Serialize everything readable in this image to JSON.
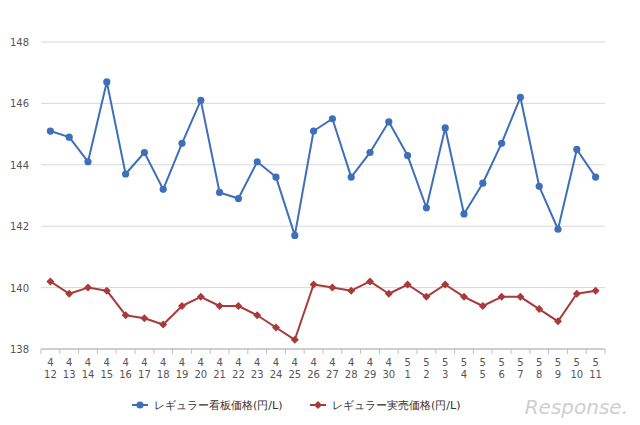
{
  "chart_data": {
    "type": "line",
    "categories": [
      "4\n12",
      "4\n13",
      "4\n14",
      "4\n15",
      "4\n16",
      "4\n17",
      "4\n18",
      "4\n19",
      "4\n20",
      "4\n21",
      "4\n22",
      "4\n23",
      "4\n24",
      "4\n25",
      "4\n26",
      "4\n27",
      "4\n28",
      "4\n29",
      "4\n30",
      "5\n1",
      "5\n2",
      "5\n3",
      "5\n4",
      "5\n5",
      "5\n6",
      "5\n7",
      "5\n8",
      "5\n9",
      "5\n10",
      "5\n11"
    ],
    "series": [
      {
        "name": "レギュラー看板価格(円/L)",
        "color": "#3e6fb8",
        "marker": "circle",
        "values": [
          145.1,
          144.9,
          144.1,
          146.7,
          143.7,
          144.4,
          143.2,
          144.7,
          146.1,
          143.1,
          142.9,
          144.1,
          143.6,
          141.7,
          145.1,
          145.5,
          143.6,
          144.4,
          145.4,
          144.3,
          142.6,
          145.2,
          142.4,
          143.4,
          144.7,
          146.2,
          143.3,
          141.9,
          144.5,
          143.6
        ]
      },
      {
        "name": "レギュラー実売価格(円/L)",
        "color": "#a83a3a",
        "marker": "diamond",
        "values": [
          140.2,
          139.8,
          140.0,
          139.9,
          139.1,
          139.0,
          138.8,
          139.4,
          139.7,
          139.4,
          139.4,
          139.1,
          138.7,
          138.3,
          140.1,
          140.0,
          139.9,
          140.2,
          139.8,
          140.1,
          139.7,
          140.1,
          139.7,
          139.4,
          139.7,
          139.7,
          139.3,
          138.9,
          139.8,
          139.9
        ]
      }
    ],
    "ylim": [
      138,
      148
    ],
    "yticks": [
      138,
      140,
      142,
      144,
      146,
      148
    ],
    "grid": true,
    "legend": "bottom",
    "watermark": "Response."
  }
}
